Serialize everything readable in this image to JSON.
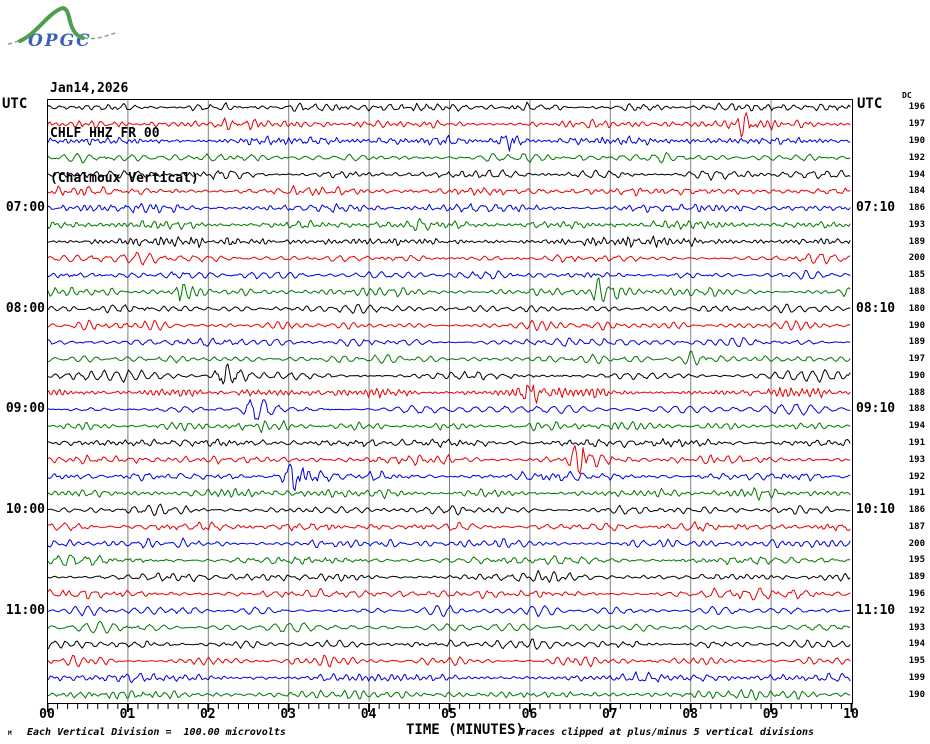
{
  "logo": {
    "text": "OPGC"
  },
  "header": {
    "date": "Jan14,2026",
    "station": "CHLF HHZ FR 00",
    "location": "(Chalmoux Vertical)"
  },
  "axes_headers": {
    "utc_left": "UTC",
    "utc_right": "UTC",
    "dc_column_label": "DC"
  },
  "footer": {
    "tiny_mark": "M",
    "scale_note": "Each Vertical Division =  100.00 microvolts",
    "clip_note": "Traces clipped at plus/minus 5 vertical divisions"
  },
  "chart_data": {
    "type": "line",
    "title": "CHLF HHZ FR 00 (Chalmoux Vertical) helicorder, Jan14,2026",
    "xlabel": "TIME (MINUTES)",
    "xlim": [
      0,
      10
    ],
    "x_tick_labels": [
      "00",
      "01",
      "02",
      "03",
      "04",
      "05",
      "06",
      "07",
      "08",
      "09",
      "10"
    ],
    "minor_ticks_per_minute": 8,
    "minutes_per_row": 10,
    "rows_per_hour": 6,
    "trace_color_cycle": [
      "black",
      "red",
      "blue",
      "green"
    ],
    "y_scale_note": "Each vertical division = 100.00 microvolts",
    "clip_divisions": 5,
    "palette": {
      "black": "#000000",
      "red": "#e80000",
      "blue": "#0000e0",
      "green": "#007a00",
      "grid": "#7f7f7f",
      "logo_green": "#4d9e4d",
      "logo_blue": "#3b62b5"
    },
    "left_time_labels": [
      {
        "row": 7,
        "label": "07:00"
      },
      {
        "row": 13,
        "label": "08:00"
      },
      {
        "row": 19,
        "label": "09:00"
      },
      {
        "row": 25,
        "label": "10:00"
      },
      {
        "row": 31,
        "label": "11:00"
      }
    ],
    "right_time_labels": [
      {
        "row": 7,
        "label": "07:10"
      },
      {
        "row": 13,
        "label": "08:10"
      },
      {
        "row": 19,
        "label": "09:10"
      },
      {
        "row": 25,
        "label": "10:10"
      },
      {
        "row": 31,
        "label": "11:10"
      }
    ],
    "rows": [
      {
        "color": "black",
        "dc": 196
      },
      {
        "color": "red",
        "dc": 197
      },
      {
        "color": "blue",
        "dc": 190
      },
      {
        "color": "green",
        "dc": 192
      },
      {
        "color": "black",
        "dc": 194
      },
      {
        "color": "red",
        "dc": 184
      },
      {
        "color": "blue",
        "dc": 186
      },
      {
        "color": "green",
        "dc": 193
      },
      {
        "color": "black",
        "dc": 189
      },
      {
        "color": "red",
        "dc": 200
      },
      {
        "color": "blue",
        "dc": 185
      },
      {
        "color": "green",
        "dc": 188
      },
      {
        "color": "black",
        "dc": 180
      },
      {
        "color": "red",
        "dc": 190
      },
      {
        "color": "blue",
        "dc": 189
      },
      {
        "color": "green",
        "dc": 197
      },
      {
        "color": "black",
        "dc": 190
      },
      {
        "color": "red",
        "dc": 188
      },
      {
        "color": "blue",
        "dc": 188
      },
      {
        "color": "green",
        "dc": 194
      },
      {
        "color": "black",
        "dc": 191
      },
      {
        "color": "red",
        "dc": 193
      },
      {
        "color": "blue",
        "dc": 192
      },
      {
        "color": "green",
        "dc": 191
      },
      {
        "color": "black",
        "dc": 186
      },
      {
        "color": "red",
        "dc": 187
      },
      {
        "color": "blue",
        "dc": 200
      },
      {
        "color": "green",
        "dc": 195
      },
      {
        "color": "black",
        "dc": 189
      },
      {
        "color": "red",
        "dc": 196
      },
      {
        "color": "blue",
        "dc": 192
      },
      {
        "color": "green",
        "dc": 193
      },
      {
        "color": "black",
        "dc": 194
      },
      {
        "color": "red",
        "dc": 195
      },
      {
        "color": "blue",
        "dc": 199
      },
      {
        "color": "green",
        "dc": 190
      }
    ],
    "events": [
      {
        "row": 2,
        "minute": 8.68,
        "intensity": 2
      },
      {
        "row": 3,
        "minute": 5.7,
        "intensity": 2
      },
      {
        "row": 12,
        "minute": 1.65,
        "intensity": 3
      },
      {
        "row": 12,
        "minute": 6.9,
        "intensity": 4
      },
      {
        "row": 16,
        "minute": 8.06,
        "intensity": 3
      },
      {
        "row": 17,
        "minute": 2.18,
        "intensity": 5
      },
      {
        "row": 18,
        "minute": 5.92,
        "intensity": 4
      },
      {
        "row": 19,
        "minute": 2.55,
        "intensity": 5
      },
      {
        "row": 22,
        "minute": 6.6,
        "intensity": 4
      },
      {
        "row": 23,
        "minute": 3.05,
        "intensity": 4
      }
    ]
  }
}
